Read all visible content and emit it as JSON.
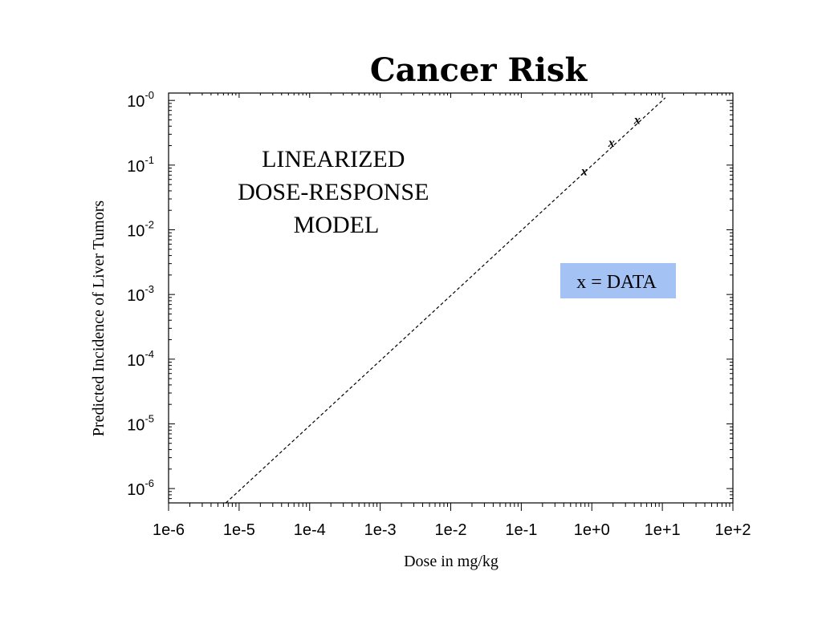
{
  "chart_data": {
    "type": "line",
    "title": "Cancer Risk",
    "xlabel": "Dose in mg/kg",
    "ylabel": "Predicted Incidence of Liver Tumors",
    "x_scale": "log",
    "y_scale": "log",
    "xlim": [
      1e-06,
      100
    ],
    "ylim": [
      6e-07,
      1.3
    ],
    "grid": false,
    "x_ticks": [
      {
        "value": 1e-06,
        "label": "1e-6"
      },
      {
        "value": 1e-05,
        "label": "1e-5"
      },
      {
        "value": 0.0001,
        "label": "1e-4"
      },
      {
        "value": 0.001,
        "label": "1e-3"
      },
      {
        "value": 0.01,
        "label": "1e-2"
      },
      {
        "value": 0.1,
        "label": "1e-1"
      },
      {
        "value": 1,
        "label": "1e+0"
      },
      {
        "value": 10,
        "label": "1e+1"
      },
      {
        "value": 100,
        "label": "1e+2"
      }
    ],
    "y_ticks": [
      {
        "value": 1,
        "base": "10",
        "exp": "-0"
      },
      {
        "value": 0.1,
        "base": "10",
        "exp": "-1"
      },
      {
        "value": 0.01,
        "base": "10",
        "exp": "-2"
      },
      {
        "value": 0.001,
        "base": "10",
        "exp": "-3"
      },
      {
        "value": 0.0001,
        "base": "10",
        "exp": "-4"
      },
      {
        "value": 1e-05,
        "base": "10",
        "exp": "-5"
      },
      {
        "value": 1e-06,
        "base": "10",
        "exp": "-6"
      }
    ],
    "series": [
      {
        "style": "dashed",
        "color": "#000000",
        "x": [
          6.5e-06,
          11
        ],
        "y": [
          6e-07,
          1.1
        ]
      },
      {
        "style": "markers",
        "marker": "x",
        "x": [
          0.78,
          1.9,
          4.4
        ],
        "y": [
          0.08,
          0.22,
          0.5
        ]
      }
    ],
    "annotation": [
      "LINEARIZED",
      "DOSE-RESPONSE",
      "MODEL"
    ],
    "legend": {
      "text": "x = DATA",
      "background": "#a4c2f4",
      "placement": "right-center"
    }
  }
}
